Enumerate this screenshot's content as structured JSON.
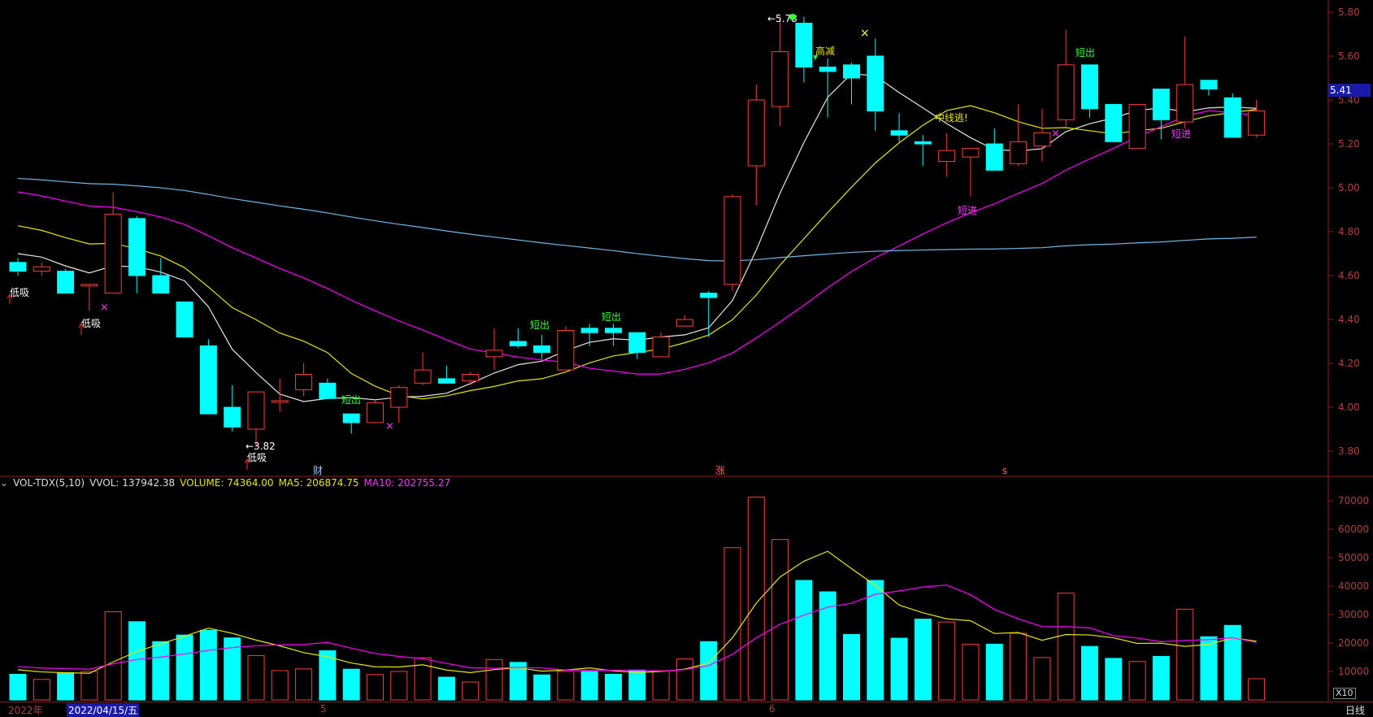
{
  "indicator": {
    "name": "VOL-TDX(5,10)",
    "vvol": "VVOL: 137942.38",
    "volume": "VOLUME: 74364.00",
    "ma5": "MA5: 206874.75",
    "ma10": "MA10: 202755.27"
  },
  "price_axis": [
    "5.80",
    "5.60",
    "5.40",
    "5.20",
    "5.00",
    "4.80",
    "4.60",
    "4.40",
    "4.20",
    "4.00",
    "3.80"
  ],
  "volume_axis": [
    "70000",
    "60000",
    "50000",
    "40000",
    "30000",
    "20000",
    "10000"
  ],
  "current_price": "5.41",
  "timeline": {
    "year": "2022年",
    "selected_date": "2022/04/15/五",
    "month_5": "5",
    "month_6": "6",
    "period": "日线",
    "scale": "X10"
  },
  "event_marks": {
    "cai": "财",
    "zhang": "涨",
    "s": "s"
  },
  "annotations": {
    "low_price": "←3.82",
    "high_price": "←5.78",
    "di_xi": "低吸",
    "duan_chu": "短出",
    "duan_jin": "短进",
    "gao_jian": "高减",
    "zhongxian_tao": "中线逃!"
  },
  "colors": {
    "up": "#ff3c3c",
    "down": "#00ffff",
    "ma_white": "#e6e6e6",
    "ma_yellow": "#e6e600",
    "ma_magenta": "#ff00ff",
    "ma_blue": "#6fb8e6",
    "green_label": "#33ff33"
  },
  "chart_data": {
    "type": "candlestick",
    "ohlc": [
      [
        4.66,
        4.68,
        4.6,
        4.62
      ],
      [
        4.62,
        4.66,
        4.6,
        4.64
      ],
      [
        4.62,
        4.63,
        4.52,
        4.52
      ],
      [
        4.56,
        4.56,
        4.44,
        4.56
      ],
      [
        4.52,
        4.98,
        4.52,
        4.88
      ],
      [
        4.86,
        4.87,
        4.52,
        4.6
      ],
      [
        4.6,
        4.68,
        4.52,
        4.52
      ],
      [
        4.48,
        4.48,
        4.32,
        4.32
      ],
      [
        4.28,
        4.31,
        3.98,
        3.97
      ],
      [
        4.0,
        4.1,
        3.89,
        3.91
      ],
      [
        3.9,
        4.07,
        3.82,
        4.07
      ],
      [
        4.03,
        4.13,
        3.98,
        4.03
      ],
      [
        4.08,
        4.2,
        4.05,
        4.15
      ],
      [
        4.11,
        4.13,
        4.04,
        4.04
      ],
      [
        3.97,
        3.97,
        3.88,
        3.93
      ],
      [
        3.93,
        4.03,
        3.93,
        4.02
      ],
      [
        4.0,
        4.1,
        3.93,
        4.09
      ],
      [
        4.11,
        4.25,
        4.1,
        4.17
      ],
      [
        4.13,
        4.19,
        4.11,
        4.11
      ],
      [
        4.12,
        4.16,
        4.1,
        4.15
      ],
      [
        4.23,
        4.36,
        4.17,
        4.26
      ],
      [
        4.3,
        4.36,
        4.27,
        4.28
      ],
      [
        4.28,
        4.33,
        4.22,
        4.25
      ],
      [
        4.17,
        4.37,
        4.17,
        4.35
      ],
      [
        4.36,
        4.38,
        4.28,
        4.34
      ],
      [
        4.36,
        4.38,
        4.28,
        4.34
      ],
      [
        4.34,
        4.34,
        4.22,
        4.25
      ],
      [
        4.23,
        4.34,
        4.23,
        4.32
      ],
      [
        4.37,
        4.42,
        4.37,
        4.4
      ],
      [
        4.52,
        4.53,
        4.32,
        4.5
      ],
      [
        4.56,
        4.97,
        4.53,
        4.96
      ],
      [
        5.1,
        5.47,
        4.92,
        5.4
      ],
      [
        5.37,
        5.78,
        5.28,
        5.62
      ],
      [
        5.75,
        5.78,
        5.48,
        5.55
      ],
      [
        5.55,
        5.59,
        5.32,
        5.53
      ],
      [
        5.56,
        5.57,
        5.38,
        5.5
      ],
      [
        5.6,
        5.68,
        5.26,
        5.35
      ],
      [
        5.26,
        5.34,
        5.21,
        5.24
      ],
      [
        5.21,
        5.24,
        5.1,
        5.2
      ],
      [
        5.12,
        5.25,
        5.05,
        5.17
      ],
      [
        5.14,
        5.18,
        4.96,
        5.18
      ],
      [
        5.2,
        5.27,
        5.08,
        5.08
      ],
      [
        5.11,
        5.38,
        5.1,
        5.21
      ],
      [
        5.19,
        5.36,
        5.12,
        5.25
      ],
      [
        5.31,
        5.72,
        5.28,
        5.56
      ],
      [
        5.56,
        5.56,
        5.32,
        5.36
      ],
      [
        5.38,
        5.38,
        5.21,
        5.21
      ],
      [
        5.18,
        5.37,
        5.18,
        5.38
      ],
      [
        5.45,
        5.45,
        5.22,
        5.31
      ],
      [
        5.3,
        5.69,
        5.27,
        5.47
      ],
      [
        5.49,
        5.49,
        5.42,
        5.45
      ],
      [
        5.41,
        5.43,
        5.23,
        5.23
      ],
      [
        5.24,
        5.4,
        5.23,
        5.35
      ]
    ],
    "volume": [
      9000,
      7200,
      9600,
      10000,
      31000,
      27500,
      20500,
      22800,
      24500,
      21800,
      15600,
      10300,
      10900,
      17300,
      10800,
      8900,
      10000,
      14800,
      8000,
      6300,
      14200,
      13200,
      8800,
      10000,
      10000,
      9000,
      10500,
      10300,
      14400,
      20500,
      53500,
      71300,
      56400,
      42000,
      38000,
      23000,
      42000,
      21700,
      28400,
      27400,
      19600,
      19600,
      23400,
      14900,
      37500,
      18800,
      14600,
      13500,
      15300,
      31900,
      22200,
      26200,
      7436
    ]
  }
}
